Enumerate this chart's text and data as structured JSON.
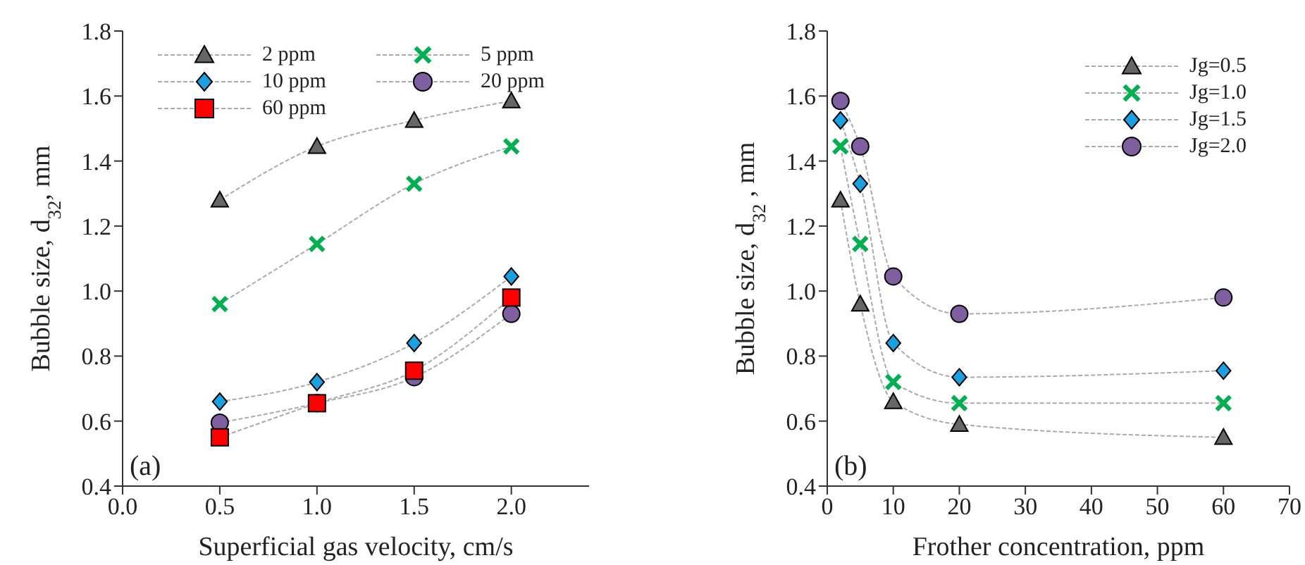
{
  "chart_data": [
    {
      "type": "line",
      "xlabel": "Superficial gas velocity, cm/s",
      "ylabel": "Bubble size, d$_{32}$, mm",
      "annotations": [
        "(a)"
      ],
      "x": [
        0.5,
        1,
        1.5,
        2
      ],
      "xlim": [
        0,
        2.4
      ],
      "xticks": [
        {
          "value": 0,
          "label": "0.0"
        },
        0.5,
        {
          "value": 1,
          "label": "1.0"
        },
        1.5,
        {
          "value": 2,
          "label": "2.0"
        }
      ],
      "ylim": [
        0.4,
        1.8
      ],
      "yticks": [
        0.4,
        0.6,
        0.8,
        {
          "value": 1,
          "label": "1.0"
        },
        1.2,
        1.4,
        1.6,
        1.8
      ],
      "legend": "top",
      "line_style": "dotted",
      "series": [
        {
          "name": "2 ppm",
          "color": "#666666",
          "marker": "triangle",
          "values": [
            1.28,
            1.445,
            1.525,
            1.585
          ]
        },
        {
          "name": "5 ppm",
          "color": "#00b050",
          "marker": "cross",
          "values": [
            0.96,
            1.145,
            1.33,
            1.445
          ]
        },
        {
          "name": "10 ppm",
          "color": "#1ba1e2",
          "marker": "diamond",
          "values": [
            0.66,
            0.72,
            0.84,
            1.045
          ]
        },
        {
          "name": "20 ppm",
          "color": "#7f5f9f",
          "marker": "circle",
          "values": [
            0.595,
            0.655,
            0.735,
            0.93
          ]
        },
        {
          "name": "60 ppm",
          "color": "#ff0000",
          "marker": "square",
          "values": [
            0.55,
            0.655,
            0.755,
            0.98
          ]
        }
      ]
    },
    {
      "type": "line",
      "xlabel": "Frother concentration, ppm",
      "ylabel": "Bubble size, d$_{32}$ , mm",
      "annotations": [
        "(b)"
      ],
      "x": [
        2,
        5,
        10,
        20,
        60
      ],
      "xlim": [
        0,
        70
      ],
      "xticks": [
        0,
        10,
        20,
        30,
        40,
        50,
        60,
        70
      ],
      "ylim": [
        0.4,
        1.8
      ],
      "yticks": [
        0.4,
        0.6,
        0.8,
        {
          "value": 1,
          "label": "1.0"
        },
        1.2,
        1.4,
        1.6,
        1.8
      ],
      "legend": "top right",
      "line_style": "dotted",
      "series": [
        {
          "name": "Jg=0.5",
          "color": "#666666",
          "marker": "triangle",
          "values": [
            1.28,
            0.96,
            0.66,
            0.59,
            0.55
          ]
        },
        {
          "name": "Jg=1.0",
          "color": "#00b050",
          "marker": "cross",
          "values": [
            1.445,
            1.145,
            0.72,
            0.655,
            0.655
          ]
        },
        {
          "name": "Jg=1.5",
          "color": "#1ba1e2",
          "marker": "diamond",
          "values": [
            1.525,
            1.33,
            0.84,
            0.735,
            0.755
          ]
        },
        {
          "name": "Jg=2.0",
          "color": "#7f5f9f",
          "marker": "circle",
          "values": [
            1.585,
            1.445,
            1.045,
            0.93,
            0.98
          ]
        }
      ]
    }
  ]
}
